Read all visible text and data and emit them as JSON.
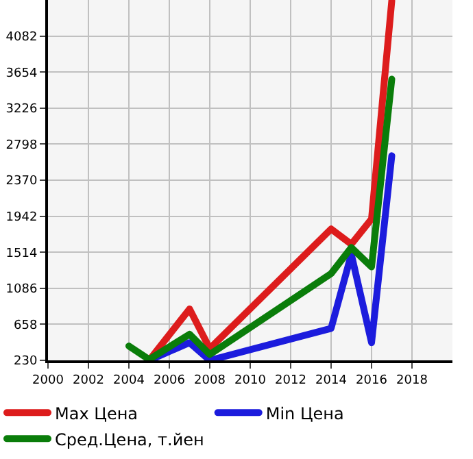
{
  "chart_data": {
    "type": "line",
    "x": [
      2004,
      2005,
      2007,
      2008,
      2014,
      2015,
      2016,
      2017
    ],
    "series": [
      {
        "name": "Max Цена",
        "color": "#dd1c1c",
        "values": [
          null,
          230,
          840,
          370,
          1790,
          1610,
          1910,
          4500
        ]
      },
      {
        "name": "Min Цена",
        "color": "#1c1cdd",
        "values": [
          null,
          230,
          440,
          230,
          610,
          1490,
          440,
          2660
        ]
      },
      {
        "name": "Сред.Цена, т.йен",
        "color": "#0a7d0a",
        "values": [
          400,
          240,
          540,
          300,
          1260,
          1570,
          1340,
          3570
        ]
      }
    ],
    "xlim": [
      2000,
      2020
    ],
    "xticks": [
      2000,
      2002,
      2004,
      2006,
      2008,
      2010,
      2012,
      2014,
      2016,
      2018
    ],
    "ylim": [
      230,
      4510
    ],
    "yticks": [
      230,
      658,
      1086,
      1514,
      1942,
      2370,
      2798,
      3226,
      3654,
      4082
    ],
    "grid": true,
    "legend": "bottom",
    "marker": "none",
    "line_style": "solid"
  }
}
